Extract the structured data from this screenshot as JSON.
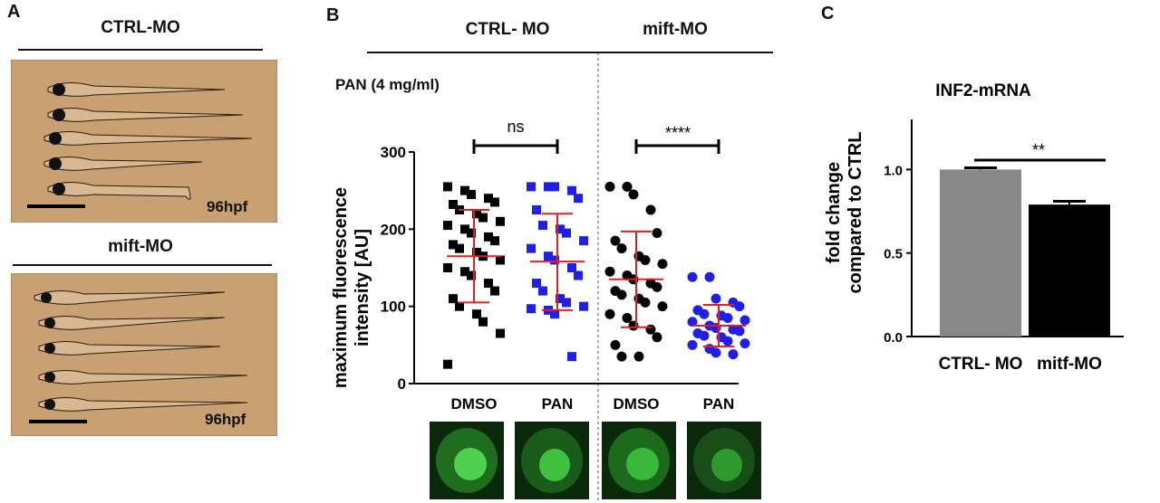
{
  "panel_a": {
    "letter": "A",
    "ctrl_header": "CTRL-MO",
    "mift_header": "mift-MO",
    "stage_label_top": "96hpf",
    "stage_label_bottom": "96hpf"
  },
  "panel_b": {
    "letter": "B",
    "group_ctrl": "CTRL- MO",
    "group_mift": "mift-MO",
    "treatment": "PAN (4 mg/ml)",
    "ylabel_line1": "maximum fluorescence",
    "ylabel_line2": "intensity [AU]",
    "sig_ctrl": "ns",
    "sig_mift": "****",
    "colors": {
      "black": "#000000",
      "blue": "#1f1fe8",
      "red": "#e02020"
    }
  },
  "panel_c": {
    "letter": "C",
    "title": "INF2-mRNA",
    "ylabel_line1": "fold change",
    "ylabel_line2": "compared to CTRL",
    "sig": "**",
    "colors": {
      "ctrl_bar": "#888888",
      "mitf_bar": "#000000"
    }
  },
  "chart_data": [
    {
      "type": "scatter",
      "ylim": [
        0,
        300
      ],
      "yticks": [
        0,
        100,
        200,
        300
      ],
      "categories": [
        "DMSO",
        "PAN",
        "DMSO",
        "PAN"
      ],
      "groups": [
        {
          "category": "DMSO",
          "marker": "square",
          "color": "#000000",
          "mean": 165,
          "sd_upper": 225,
          "sd_lower": 105,
          "values": [
            255,
            250,
            245,
            240,
            235,
            232,
            225,
            220,
            215,
            210,
            205,
            200,
            195,
            190,
            185,
            180,
            175,
            170,
            165,
            160,
            150,
            145,
            140,
            130,
            120,
            110,
            100,
            90,
            80,
            65,
            25
          ]
        },
        {
          "category": "PAN",
          "marker": "square",
          "color": "#1f1fe8",
          "mean": 158,
          "sd_upper": 220,
          "sd_lower": 95,
          "values": [
            255,
            255,
            255,
            250,
            240,
            225,
            205,
            200,
            195,
            185,
            175,
            165,
            160,
            150,
            140,
            130,
            120,
            110,
            105,
            100,
            97,
            95,
            90,
            35
          ]
        },
        {
          "category": "DMSO",
          "marker": "circle",
          "color": "#000000",
          "mean": 135,
          "sd_upper": 197,
          "sd_lower": 73,
          "values": [
            255,
            255,
            245,
            225,
            195,
            185,
            175,
            165,
            160,
            155,
            145,
            140,
            135,
            130,
            125,
            120,
            115,
            110,
            105,
            100,
            90,
            85,
            75,
            70,
            60,
            50,
            35,
            35
          ]
        },
        {
          "category": "PAN",
          "marker": "circle",
          "color": "#1f1fe8",
          "mean": 75,
          "sd_upper": 102,
          "sd_lower": 48,
          "values": [
            138,
            138,
            110,
            105,
            100,
            95,
            90,
            88,
            85,
            82,
            80,
            75,
            72,
            70,
            68,
            65,
            62,
            60,
            55,
            52,
            50,
            45,
            40,
            38
          ]
        }
      ]
    },
    {
      "type": "bar",
      "categories": [
        "CTRL- MO",
        "mitf-MO"
      ],
      "values": [
        1.0,
        0.79
      ],
      "errors": [
        0.01,
        0.02
      ],
      "ylim": [
        0,
        1.3
      ],
      "yticks": [
        "0.0",
        "0.5",
        "1.0"
      ]
    }
  ]
}
